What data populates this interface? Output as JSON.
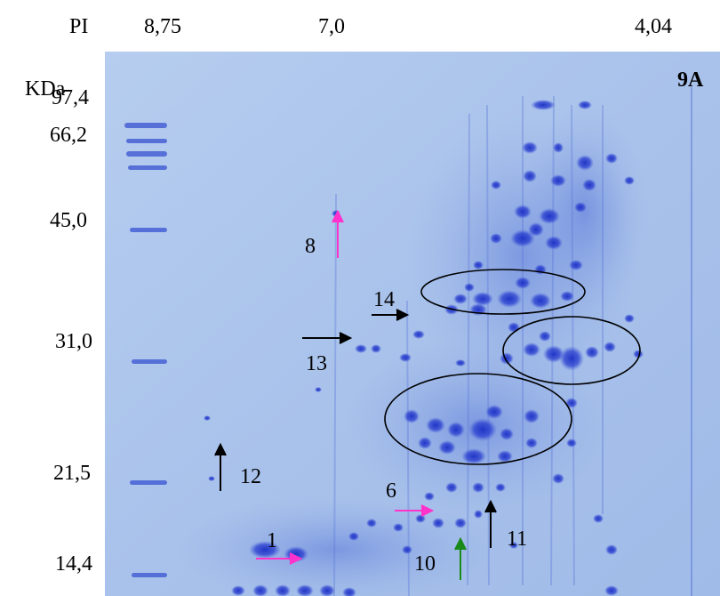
{
  "pi_axis": {
    "label": "PI",
    "ticks": [
      "8,75",
      "7,0",
      "4,04"
    ]
  },
  "mw_axis": {
    "label": "KDa",
    "ticks": [
      "97,4",
      "66,2",
      "45,0",
      "31,0",
      "21,5",
      "14,4"
    ]
  },
  "panel_label": "9A",
  "spot_labels": [
    "1",
    "6",
    "8",
    "10",
    "11",
    "12",
    "13",
    "14"
  ],
  "colors": {
    "gel_background": "#aec7ec",
    "spot": "#2a3fd0",
    "arrow_black": "#000000",
    "arrow_magenta": "#ff33cc",
    "arrow_green": "#1a8a1a"
  }
}
